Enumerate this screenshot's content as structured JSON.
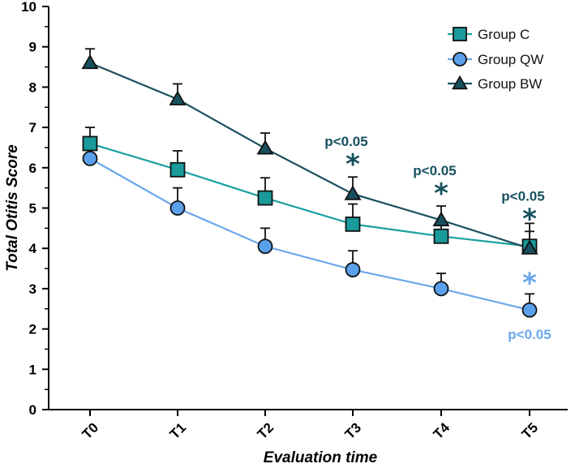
{
  "chart_data": {
    "type": "line",
    "title": "",
    "xlabel": "Evaluation time",
    "ylabel": "Total Otitis Score",
    "categories": [
      "T0",
      "T1",
      "T2",
      "T3",
      "T4",
      "T5"
    ],
    "ylim": [
      0,
      10
    ],
    "yticks": [
      "0",
      "1",
      "2",
      "3",
      "4",
      "5",
      "6",
      "7",
      "8",
      "9",
      "10"
    ],
    "grid": false,
    "legend_position": "top-right",
    "series": [
      {
        "name": "Group C",
        "marker": "square",
        "color": "#1a9a9a",
        "line_color": "#1aa0a0",
        "values": [
          6.6,
          5.95,
          5.25,
          4.6,
          4.3,
          4.05
        ],
        "errors": [
          0.4,
          0.47,
          0.5,
          0.5,
          0.35,
          0.57
        ]
      },
      {
        "name": "Group QW",
        "marker": "circle",
        "color": "#5aa0ea",
        "line_color": "#6aa8ec",
        "values": [
          6.23,
          5.0,
          4.05,
          3.47,
          3.0,
          2.47
        ],
        "errors": [
          0,
          0.5,
          0.45,
          0.47,
          0.38,
          0.4
        ]
      },
      {
        "name": "Group BW",
        "marker": "triangle",
        "color": "#17505e",
        "line_color": "#1b4f5e",
        "values": [
          8.6,
          7.7,
          6.48,
          5.35,
          4.7,
          4.0
        ],
        "errors": [
          0.35,
          0.38,
          0.38,
          0.42,
          0.35,
          0.42
        ]
      }
    ],
    "annotations": [
      {
        "category": "T3",
        "text": "p<0.05",
        "star": "*",
        "color": "#17505e",
        "placement": "above"
      },
      {
        "category": "T4",
        "text": "p<0.05",
        "star": "*",
        "color": "#17505e",
        "placement": "above"
      },
      {
        "category": "T5",
        "text": "p<0.05",
        "star": "*",
        "color": "#17505e",
        "placement": "above"
      },
      {
        "category": "T5",
        "text": "p<0.05",
        "star": "*",
        "color": "#6aa8ec",
        "placement": "below"
      }
    ]
  }
}
